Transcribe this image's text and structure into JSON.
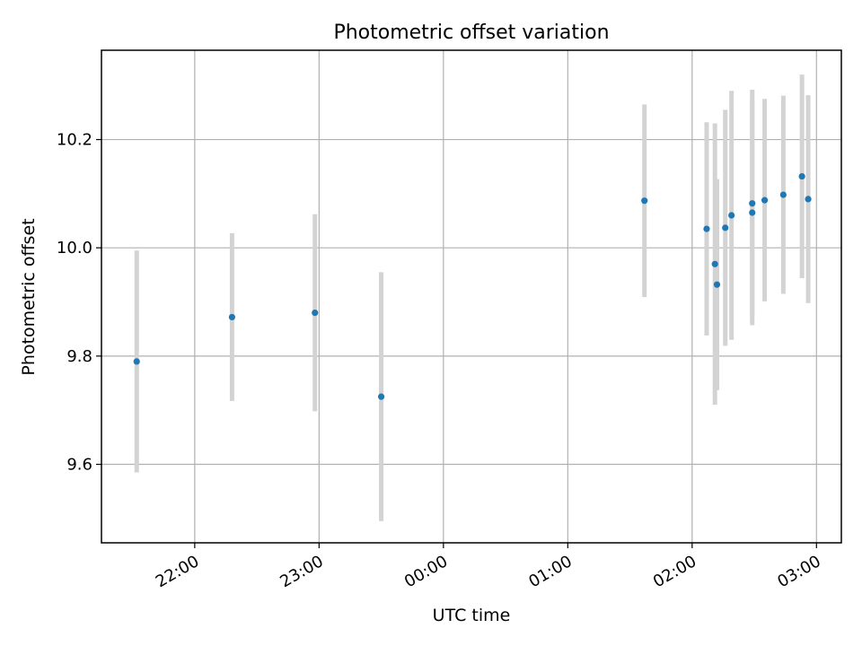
{
  "chart_data": {
    "type": "scatter",
    "title": "Photometric offset variation",
    "xlabel": "UTC time",
    "ylabel": "Photometric offset",
    "x_ticks": [
      "22:00",
      "23:00",
      "00:00",
      "01:00",
      "02:00",
      "03:00"
    ],
    "y_ticks": [
      "9.6",
      "9.8",
      "10.0",
      "10.2"
    ],
    "xlim": [
      "21:15",
      "03:12"
    ],
    "ylim": [
      9.455,
      10.365
    ],
    "grid": true,
    "point_color": "#1f77b4",
    "errorbar_color": "#d3d3d3",
    "points": [
      {
        "x": "21:32",
        "y": 9.79,
        "err": 0.205
      },
      {
        "x": "22:18",
        "y": 9.872,
        "err": 0.155
      },
      {
        "x": "22:58",
        "y": 9.88,
        "err": 0.182
      },
      {
        "x": "23:30",
        "y": 9.725,
        "err": 0.23
      },
      {
        "x": "01:37",
        "y": 10.087,
        "err": 0.178
      },
      {
        "x": "02:07",
        "y": 10.035,
        "err": 0.197
      },
      {
        "x": "02:11",
        "y": 9.97,
        "err": 0.26
      },
      {
        "x": "02:12",
        "y": 9.932,
        "err": 0.195
      },
      {
        "x": "02:16",
        "y": 10.037,
        "err": 0.218
      },
      {
        "x": "02:19",
        "y": 10.06,
        "err": 0.23
      },
      {
        "x": "02:29",
        "y": 10.082,
        "err": 0.21
      },
      {
        "x": "02:29",
        "y": 10.065,
        "err": 0.208
      },
      {
        "x": "02:35",
        "y": 10.088,
        "err": 0.187
      },
      {
        "x": "02:44",
        "y": 10.098,
        "err": 0.183
      },
      {
        "x": "02:53",
        "y": 10.132,
        "err": 0.188
      },
      {
        "x": "02:56",
        "y": 10.09,
        "err": 0.192
      }
    ]
  }
}
